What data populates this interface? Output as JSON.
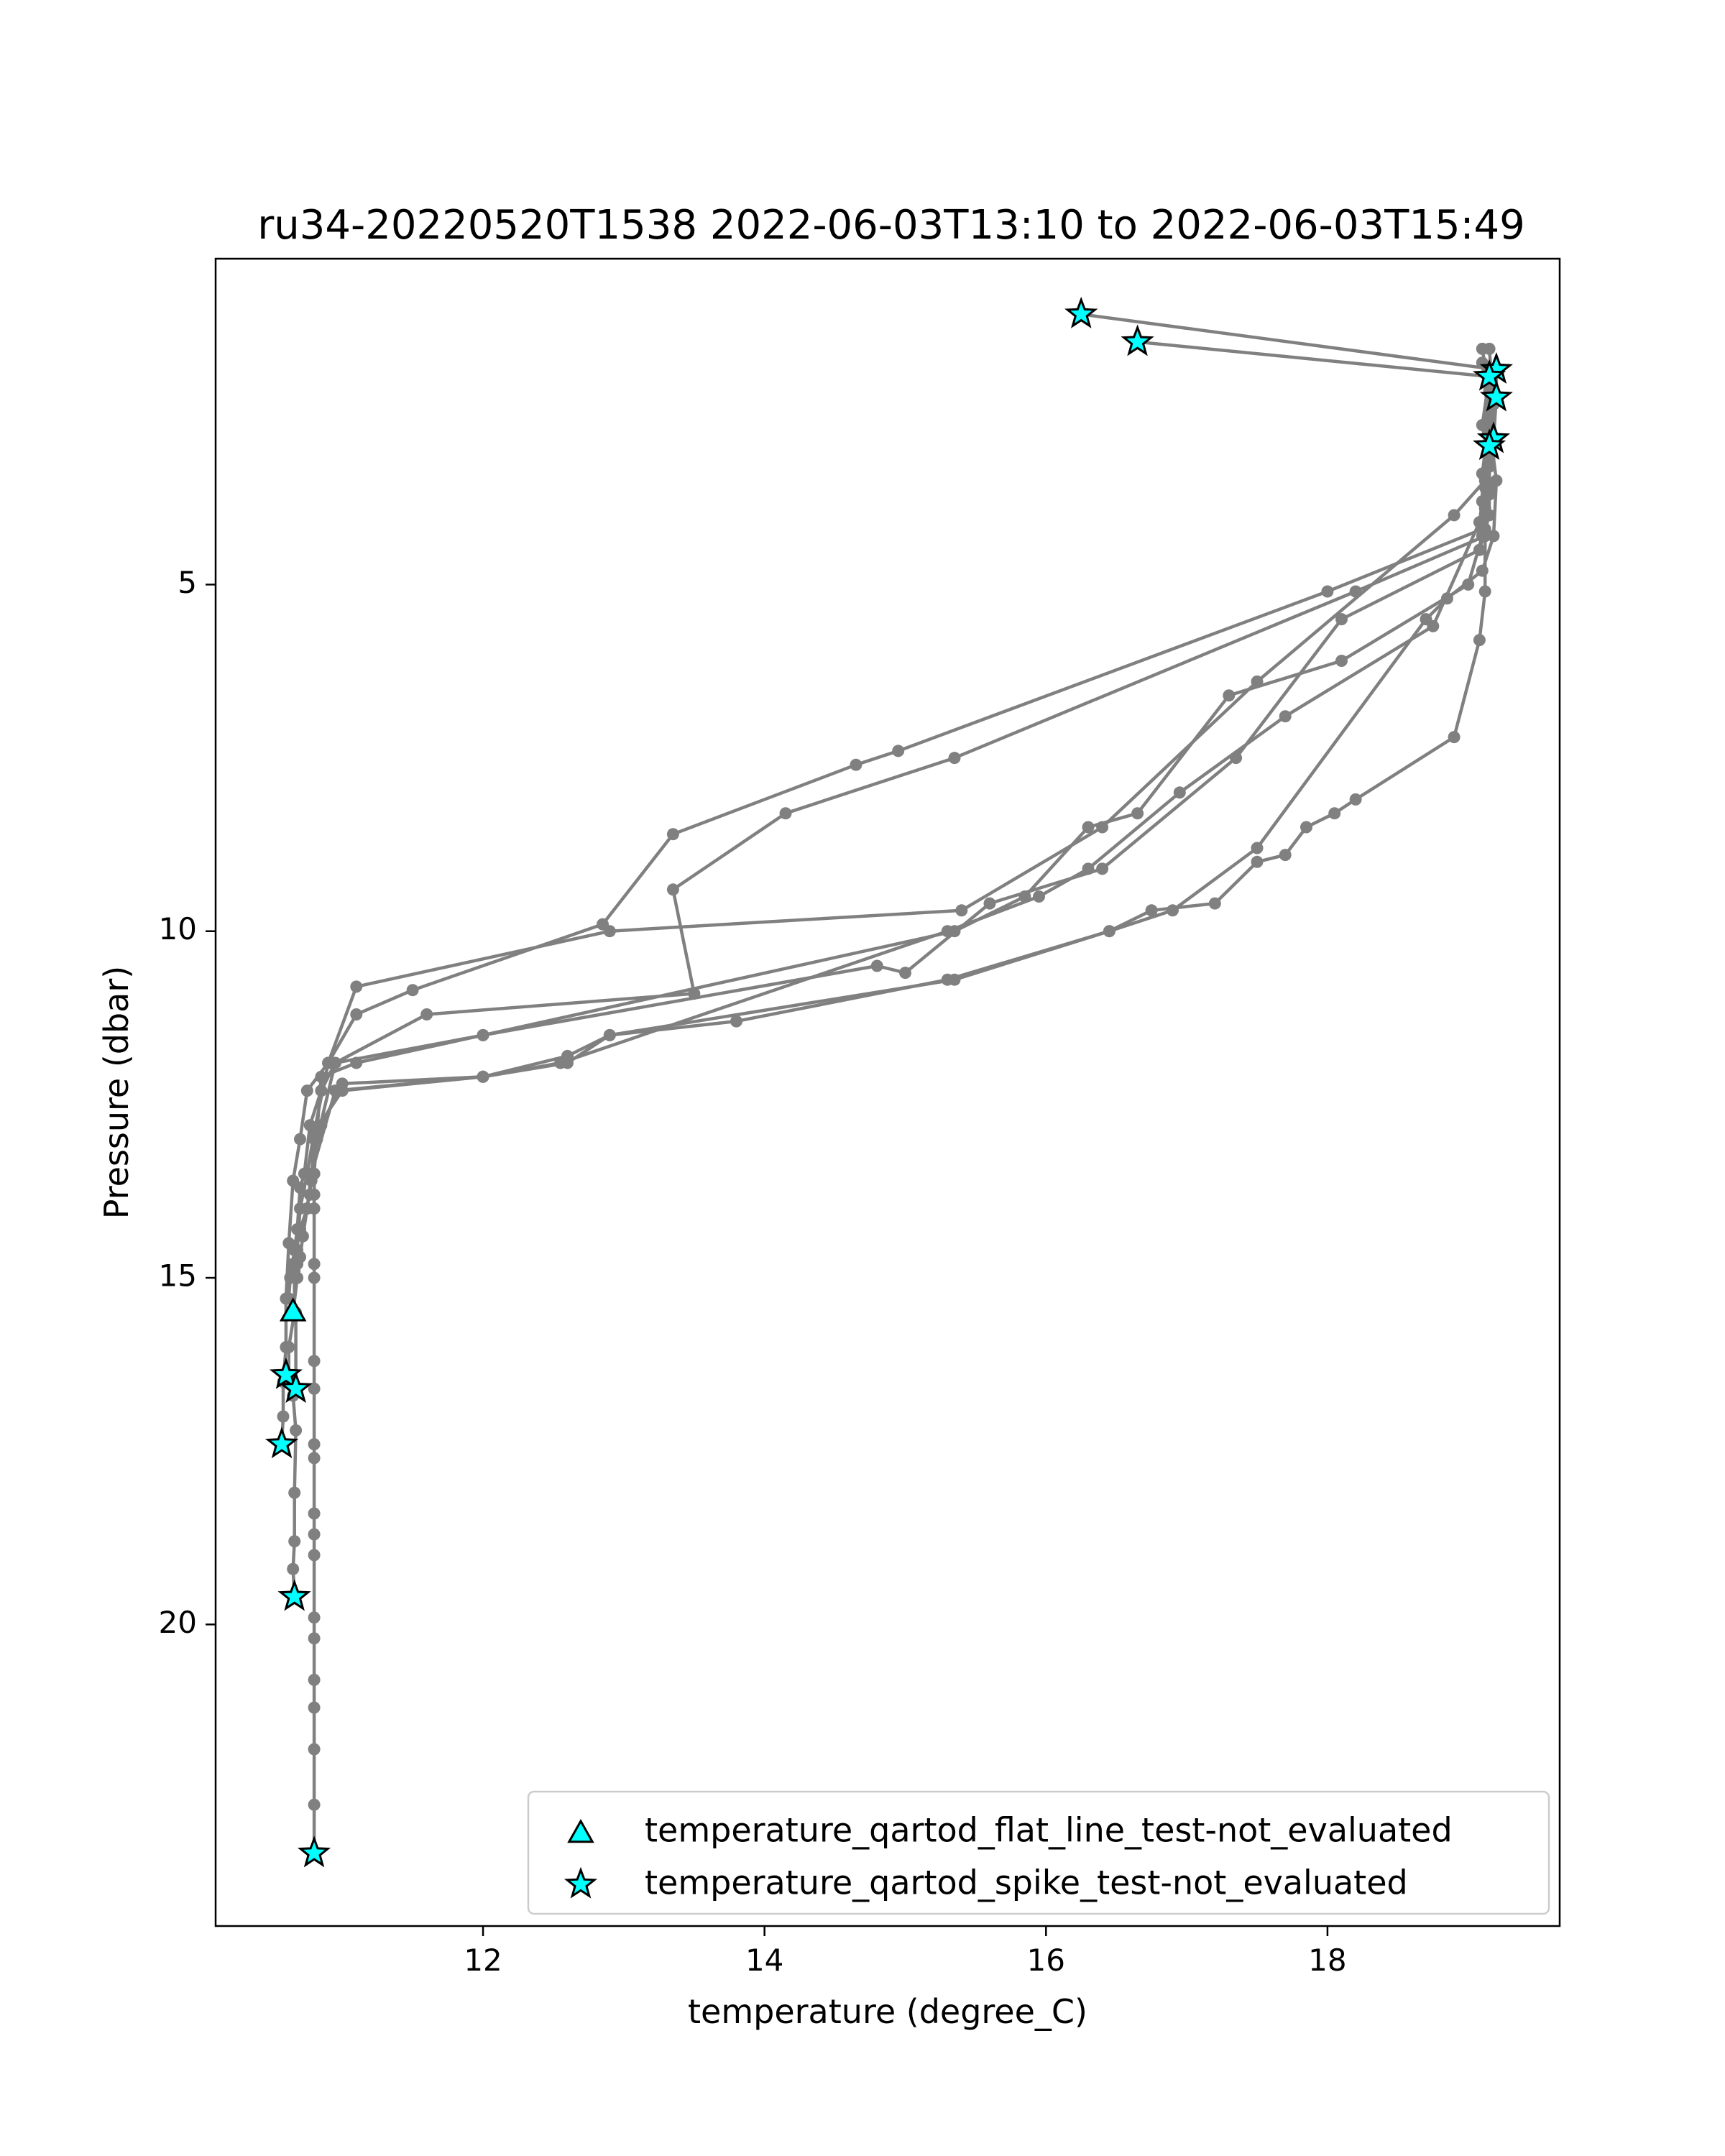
{
  "chart_data": {
    "type": "line",
    "title": "ru34-20220520T1538 2022-06-03T13:10 to 2022-06-03T15:49",
    "xlabel": "temperature (degree_C)",
    "ylabel": "Pressure (dbar)",
    "xlim": [
      10.1,
      19.65
    ],
    "ylim": [
      24.35,
      0.3
    ],
    "y_inverted": true,
    "xticks": [
      12,
      14,
      16,
      18
    ],
    "yticks": [
      5,
      10,
      15,
      20
    ],
    "grid": false,
    "legend_position": "lower right",
    "colors": {
      "line": "#808080",
      "marker_fill": "#00ffff",
      "marker_edge": "#000000"
    },
    "profiles": [
      [
        [
          19.1,
          1.6
        ],
        [
          19.15,
          2.2
        ],
        [
          19.15,
          2.8
        ],
        [
          19.12,
          3.5
        ],
        [
          18.9,
          4.0
        ],
        [
          17.5,
          6.4
        ],
        [
          16.4,
          8.5
        ],
        [
          15.4,
          9.7
        ],
        [
          12.9,
          10.0
        ],
        [
          11.1,
          10.8
        ],
        [
          10.9,
          11.9
        ],
        [
          10.75,
          12.3
        ],
        [
          10.7,
          13.0
        ],
        [
          10.65,
          13.6
        ],
        [
          10.62,
          14.5
        ],
        [
          10.6,
          15.3
        ],
        [
          10.6,
          16.0
        ],
        [
          10.58,
          16.5
        ],
        [
          10.58,
          17.0
        ],
        [
          10.57,
          17.4
        ]
      ],
      [
        [
          16.25,
          1.1
        ],
        [
          19.2,
          1.9
        ],
        [
          19.2,
          2.3
        ],
        [
          19.18,
          2.9
        ],
        [
          19.12,
          3.6
        ],
        [
          19.1,
          4.2
        ],
        [
          18.0,
          5.1
        ],
        [
          14.95,
          7.4
        ],
        [
          14.65,
          7.6
        ],
        [
          13.35,
          8.6
        ],
        [
          12.85,
          9.9
        ],
        [
          11.5,
          10.85
        ],
        [
          11.1,
          11.2
        ],
        [
          10.9,
          11.9
        ],
        [
          10.8,
          12.9
        ],
        [
          10.75,
          13.5
        ],
        [
          10.7,
          14.0
        ],
        [
          10.68,
          14.6
        ],
        [
          10.66,
          14.9
        ],
        [
          10.66,
          15.5
        ],
        [
          10.62,
          16.0
        ],
        [
          10.62,
          16.4
        ],
        [
          10.65,
          16.7
        ],
        [
          10.67,
          17.2
        ],
        [
          10.66,
          18.1
        ],
        [
          10.66,
          18.8
        ],
        [
          10.65,
          19.2
        ],
        [
          10.66,
          19.6
        ]
      ],
      [
        [
          16.65,
          1.5
        ],
        [
          19.15,
          2.0
        ],
        [
          19.1,
          2.7
        ],
        [
          19.15,
          3.3
        ],
        [
          19.15,
          3.7
        ],
        [
          19.12,
          4.3
        ],
        [
          18.2,
          5.1
        ],
        [
          15.35,
          7.5
        ],
        [
          14.15,
          8.3
        ],
        [
          13.35,
          9.4
        ],
        [
          13.5,
          10.9
        ],
        [
          11.6,
          11.2
        ],
        [
          10.95,
          11.9
        ],
        [
          10.85,
          12.3
        ],
        [
          10.77,
          12.8
        ],
        [
          10.73,
          13.5
        ],
        [
          10.7,
          13.7
        ],
        [
          10.68,
          14.3
        ],
        [
          10.66,
          14.6
        ],
        [
          10.63,
          15.0
        ],
        [
          10.62,
          15.3
        ],
        [
          10.67,
          15.5
        ],
        [
          10.67,
          16.6
        ]
      ],
      [
        [
          19.15,
          1.6
        ],
        [
          19.18,
          2.4
        ],
        [
          19.15,
          3.2
        ],
        [
          19.15,
          4.0
        ],
        [
          19.08,
          4.5
        ],
        [
          18.1,
          5.5
        ],
        [
          17.35,
          7.5
        ],
        [
          16.4,
          9.1
        ],
        [
          15.6,
          9.6
        ],
        [
          15.0,
          10.6
        ],
        [
          14.8,
          10.5
        ],
        [
          12.0,
          11.5
        ],
        [
          11.1,
          11.9
        ],
        [
          10.85,
          12.1
        ],
        [
          10.82,
          12.9
        ],
        [
          10.8,
          13.5
        ],
        [
          10.8,
          13.8
        ],
        [
          10.8,
          14.8
        ],
        [
          10.8,
          15.0
        ],
        [
          10.8,
          16.2
        ],
        [
          10.8,
          16.6
        ],
        [
          10.8,
          17.4
        ],
        [
          10.8,
          17.6
        ],
        [
          10.8,
          18.4
        ],
        [
          10.8,
          18.7
        ],
        [
          10.8,
          19.0
        ],
        [
          10.8,
          19.9
        ],
        [
          10.8,
          20.2
        ],
        [
          10.8,
          20.8
        ],
        [
          10.8,
          21.2
        ],
        [
          10.8,
          21.8
        ],
        [
          10.8,
          22.6
        ],
        [
          10.8,
          23.3
        ]
      ],
      [
        [
          19.15,
          2.5
        ],
        [
          19.15,
          3.1
        ],
        [
          19.12,
          3.9
        ],
        [
          19.1,
          4.3
        ],
        [
          19.0,
          5.0
        ],
        [
          18.1,
          6.1
        ],
        [
          17.3,
          6.6
        ],
        [
          16.65,
          8.3
        ],
        [
          16.3,
          8.5
        ],
        [
          15.85,
          9.5
        ],
        [
          15.35,
          10.0
        ],
        [
          12.0,
          11.5
        ],
        [
          10.95,
          11.9
        ],
        [
          10.82,
          13.0
        ],
        [
          10.78,
          13.5
        ],
        [
          10.77,
          13.8
        ]
      ],
      [
        [
          19.15,
          2.0
        ],
        [
          19.15,
          2.6
        ],
        [
          19.1,
          3.4
        ],
        [
          19.1,
          3.8
        ],
        [
          19.08,
          4.1
        ],
        [
          18.75,
          5.6
        ],
        [
          17.7,
          6.9
        ],
        [
          16.95,
          8.0
        ],
        [
          16.3,
          9.1
        ],
        [
          15.95,
          9.5
        ],
        [
          15.3,
          10.0
        ],
        [
          12.55,
          11.9
        ],
        [
          12.0,
          12.1
        ],
        [
          11.0,
          12.2
        ],
        [
          10.85,
          12.8
        ],
        [
          10.8,
          13.0
        ],
        [
          10.8,
          13.5
        ],
        [
          10.8,
          14.0
        ]
      ],
      [
        [
          19.1,
          1.8
        ],
        [
          19.15,
          2.7
        ],
        [
          19.2,
          3.5
        ],
        [
          19.18,
          4.3
        ],
        [
          19.1,
          4.8
        ],
        [
          18.85,
          5.2
        ],
        [
          18.7,
          5.5
        ],
        [
          17.5,
          8.8
        ],
        [
          16.9,
          9.7
        ],
        [
          16.45,
          10.0
        ],
        [
          15.3,
          10.7
        ],
        [
          13.8,
          11.3
        ],
        [
          12.9,
          11.5
        ],
        [
          12.6,
          11.9
        ],
        [
          12.0,
          12.1
        ],
        [
          10.95,
          12.3
        ],
        [
          10.78,
          13.5
        ],
        [
          10.75,
          14.0
        ],
        [
          10.7,
          14.3
        ],
        [
          10.65,
          14.8
        ]
      ],
      [
        [
          19.15,
          3.0
        ],
        [
          19.15,
          3.6
        ],
        [
          19.12,
          4.2
        ],
        [
          19.12,
          5.1
        ],
        [
          19.08,
          5.8
        ],
        [
          18.9,
          7.2
        ],
        [
          18.2,
          8.1
        ],
        [
          18.05,
          8.3
        ],
        [
          17.85,
          8.5
        ],
        [
          17.7,
          8.9
        ],
        [
          17.5,
          9.0
        ],
        [
          17.2,
          9.6
        ],
        [
          16.75,
          9.7
        ],
        [
          16.45,
          10.0
        ],
        [
          15.35,
          10.7
        ],
        [
          12.9,
          11.5
        ],
        [
          12.6,
          11.8
        ],
        [
          12.0,
          12.1
        ],
        [
          11.0,
          12.3
        ],
        [
          10.8,
          12.9
        ],
        [
          10.78,
          13.6
        ],
        [
          10.75,
          14.0
        ],
        [
          10.72,
          14.4
        ],
        [
          10.7,
          14.7
        ],
        [
          10.68,
          14.8
        ],
        [
          10.68,
          15.0
        ],
        [
          10.65,
          15.5
        ]
      ]
    ],
    "flag_series": [
      {
        "name": "temperature_qartod_flat_line_test-not_evaluated",
        "marker": "triangle",
        "points": [
          [
            10.65,
            15.5
          ]
        ]
      },
      {
        "name": "temperature_qartod_spike_test-not_evaluated",
        "marker": "star",
        "points": [
          [
            16.25,
            1.1
          ],
          [
            16.65,
            1.5
          ],
          [
            19.2,
            1.9
          ],
          [
            19.15,
            2.0
          ],
          [
            19.2,
            2.3
          ],
          [
            19.18,
            2.9
          ],
          [
            19.15,
            3.0
          ],
          [
            10.6,
            16.4
          ],
          [
            10.67,
            16.6
          ],
          [
            10.57,
            17.4
          ],
          [
            10.66,
            19.6
          ],
          [
            10.8,
            23.3
          ]
        ]
      }
    ]
  }
}
